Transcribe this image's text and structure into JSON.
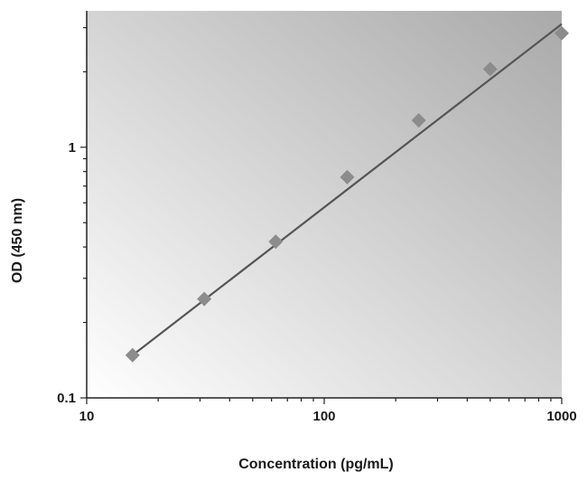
{
  "chart_data": {
    "type": "scatter",
    "title": "",
    "xlabel": "Concentration (pg/mL)",
    "ylabel": "OD (450 nm)",
    "x_scale": "log",
    "y_scale": "log",
    "xlim": [
      10,
      1000
    ],
    "ylim": [
      0.1,
      3.5
    ],
    "x_ticks": [
      {
        "value": 10,
        "label": "10"
      },
      {
        "value": 100,
        "label": "100"
      },
      {
        "value": 1000,
        "label": "1000"
      }
    ],
    "y_ticks": [
      {
        "value": 0.1,
        "label": "0.1"
      },
      {
        "value": 1,
        "label": "1"
      }
    ],
    "grid": false,
    "legend": "none",
    "series": [
      {
        "x": [
          15.6,
          31.25,
          62.5,
          125,
          250,
          500,
          1000
        ],
        "y": [
          0.148,
          0.248,
          0.42,
          0.76,
          1.28,
          2.05,
          2.85
        ]
      }
    ],
    "fit_line": {
      "x": [
        15.6,
        1000
      ],
      "y": [
        0.148,
        3.1
      ]
    },
    "colors": {
      "marker": "#8c8c8c",
      "line": "#555555",
      "plot_bg_light": "#ffffff",
      "plot_bg_dark": "#a9a9a9"
    }
  }
}
